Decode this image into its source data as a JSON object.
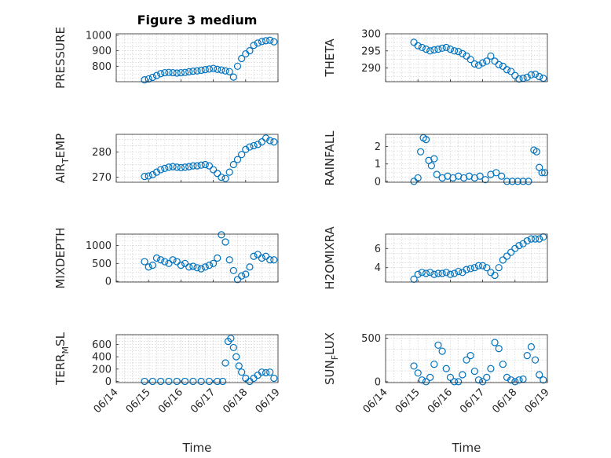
{
  "figure_title": "Figure 3 medium",
  "x_axis_label": "Time",
  "x_tick_labels": [
    "06/14",
    "06/15",
    "06/16",
    "06/17",
    "06/18",
    "06/19"
  ],
  "colors": {
    "marker": "#0072bd",
    "axes": "#262626",
    "grid": "#c8c8c8"
  },
  "chart_data": [
    {
      "type": "scatter",
      "ylabel": "PRESSURE",
      "ylim": [
        700,
        1010
      ],
      "yticks": [
        800,
        900,
        1000
      ],
      "title": "Figure 3 medium",
      "x": [
        "06/14 21:00",
        "06/15 00:00",
        "06/15 03:00",
        "06/15 06:00",
        "06/15 09:00",
        "06/15 12:00",
        "06/15 15:00",
        "06/15 18:00",
        "06/15 21:00",
        "06/16 00:00",
        "06/16 03:00",
        "06/16 06:00",
        "06/16 09:00",
        "06/16 12:00",
        "06/16 15:00",
        "06/16 18:00",
        "06/16 21:00",
        "06/17 00:00",
        "06/17 03:00",
        "06/17 06:00",
        "06/17 09:00",
        "06/17 12:00",
        "06/17 15:00",
        "06/17 18:00",
        "06/17 21:00",
        "06/18 00:00",
        "06/18 03:00",
        "06/18 06:00",
        "06/18 09:00",
        "06/18 12:00",
        "06/18 15:00",
        "06/18 18:00",
        "06/18 21:00"
      ],
      "y": [
        712,
        718,
        728,
        740,
        752,
        758,
        760,
        758,
        756,
        758,
        760,
        764,
        768,
        770,
        774,
        778,
        782,
        786,
        780,
        776,
        770,
        765,
        730,
        800,
        850,
        880,
        900,
        935,
        950,
        960,
        965,
        968,
        958
      ]
    },
    {
      "type": "scatter",
      "ylabel": "THETA",
      "ylim": [
        286,
        300
      ],
      "yticks": [
        290,
        295,
        300
      ],
      "x": [
        "06/14 21:00",
        "06/15 00:00",
        "06/15 03:00",
        "06/15 06:00",
        "06/15 09:00",
        "06/15 12:00",
        "06/15 15:00",
        "06/15 18:00",
        "06/15 21:00",
        "06/16 00:00",
        "06/16 03:00",
        "06/16 06:00",
        "06/16 09:00",
        "06/16 12:00",
        "06/16 15:00",
        "06/16 18:00",
        "06/16 21:00",
        "06/17 00:00",
        "06/17 03:00",
        "06/17 06:00",
        "06/17 09:00",
        "06/17 12:00",
        "06/17 15:00",
        "06/17 18:00",
        "06/17 21:00",
        "06/18 00:00",
        "06/18 03:00",
        "06/18 06:00",
        "06/18 09:00",
        "06/18 12:00",
        "06/18 15:00",
        "06/18 18:00",
        "06/18 21:00"
      ],
      "y": [
        297.5,
        296.5,
        296,
        295.5,
        295,
        295.3,
        295.5,
        295.8,
        296,
        295.5,
        295,
        294.8,
        294.2,
        293.5,
        292.5,
        291.2,
        290.8,
        291.5,
        292,
        293.5,
        292,
        291,
        290.5,
        289.5,
        289,
        287.8,
        286.8,
        287,
        287.3,
        288,
        288.2,
        287.5,
        287
      ]
    },
    {
      "type": "scatter",
      "ylabel": "AIR_TEMP",
      "ylim": [
        268,
        287
      ],
      "yticks": [
        270,
        280
      ],
      "x": [
        "06/14 21:00",
        "06/15 00:00",
        "06/15 03:00",
        "06/15 06:00",
        "06/15 09:00",
        "06/15 12:00",
        "06/15 15:00",
        "06/15 18:00",
        "06/15 21:00",
        "06/16 00:00",
        "06/16 03:00",
        "06/16 06:00",
        "06/16 09:00",
        "06/16 12:00",
        "06/16 15:00",
        "06/16 18:00",
        "06/16 21:00",
        "06/17 00:00",
        "06/17 03:00",
        "06/17 06:00",
        "06/17 09:00",
        "06/17 12:00",
        "06/17 15:00",
        "06/17 18:00",
        "06/17 21:00",
        "06/18 00:00",
        "06/18 03:00",
        "06/18 06:00",
        "06/18 09:00",
        "06/18 12:00",
        "06/18 15:00",
        "06/18 18:00",
        "06/18 21:00"
      ],
      "y": [
        270.3,
        270.5,
        271,
        272,
        273,
        273.5,
        274,
        274.2,
        274,
        273.8,
        274,
        274.2,
        274.5,
        274.5,
        274.8,
        275,
        274.5,
        273,
        271.5,
        270,
        269.5,
        272,
        275,
        277,
        279,
        281,
        282,
        282.5,
        283,
        284,
        285.5,
        284.5,
        284
      ]
    },
    {
      "type": "scatter",
      "ylabel": "RAINFALL",
      "ylim": [
        -0.05,
        2.7
      ],
      "yticks": [
        0,
        1,
        2
      ],
      "x": [
        "06/14 21:00",
        "06/15 00:00",
        "06/15 02:00",
        "06/15 04:00",
        "06/15 06:00",
        "06/15 08:00",
        "06/15 10:00",
        "06/15 12:00",
        "06/15 14:00",
        "06/15 18:00",
        "06/15 22:00",
        "06/16 02:00",
        "06/16 06:00",
        "06/16 10:00",
        "06/16 14:00",
        "06/16 18:00",
        "06/16 22:00",
        "06/17 02:00",
        "06/17 06:00",
        "06/17 10:00",
        "06/17 14:00",
        "06/17 18:00",
        "06/17 22:00",
        "06/18 02:00",
        "06/18 06:00",
        "06/18 10:00",
        "06/18 14:00",
        "06/18 16:00",
        "06/18 18:00",
        "06/18 20:00",
        "06/18 22:00"
      ],
      "y": [
        0,
        0.2,
        1.7,
        2.5,
        2.4,
        1.2,
        0.9,
        1.3,
        0.4,
        0.2,
        0.3,
        0.2,
        0.3,
        0.2,
        0.3,
        0.2,
        0.3,
        0.1,
        0.4,
        0.5,
        0.3,
        0,
        0,
        0,
        0,
        0,
        1.8,
        1.7,
        0.8,
        0.5,
        0.5
      ]
    },
    {
      "type": "scatter",
      "ylabel": "MIXDEPTH",
      "ylim": [
        -20,
        1320
      ],
      "yticks": [
        0,
        500,
        1000
      ],
      "x": [
        "06/14 21:00",
        "06/15 00:00",
        "06/15 03:00",
        "06/15 06:00",
        "06/15 09:00",
        "06/15 12:00",
        "06/15 15:00",
        "06/15 18:00",
        "06/15 21:00",
        "06/16 00:00",
        "06/16 03:00",
        "06/16 06:00",
        "06/16 09:00",
        "06/16 12:00",
        "06/16 15:00",
        "06/16 18:00",
        "06/16 21:00",
        "06/17 00:00",
        "06/17 03:00",
        "06/17 06:00",
        "06/17 09:00",
        "06/17 12:00",
        "06/17 15:00",
        "06/17 18:00",
        "06/17 21:00",
        "06/18 00:00",
        "06/18 03:00",
        "06/18 06:00",
        "06/18 09:00",
        "06/18 12:00",
        "06/18 15:00",
        "06/18 18:00",
        "06/18 21:00"
      ],
      "y": [
        550,
        400,
        450,
        650,
        600,
        550,
        500,
        600,
        550,
        450,
        500,
        400,
        420,
        380,
        350,
        400,
        450,
        500,
        650,
        1300,
        1100,
        600,
        300,
        50,
        150,
        200,
        400,
        700,
        750,
        650,
        700,
        600,
        600
      ]
    },
    {
      "type": "scatter",
      "ylabel": "H2OMIXRA",
      "ylim": [
        2.5,
        7.5
      ],
      "yticks": [
        4,
        6
      ],
      "x": [
        "06/14 21:00",
        "06/15 00:00",
        "06/15 03:00",
        "06/15 06:00",
        "06/15 09:00",
        "06/15 12:00",
        "06/15 15:00",
        "06/15 18:00",
        "06/15 21:00",
        "06/16 00:00",
        "06/16 03:00",
        "06/16 06:00",
        "06/16 09:00",
        "06/16 12:00",
        "06/16 15:00",
        "06/16 18:00",
        "06/16 21:00",
        "06/17 00:00",
        "06/17 03:00",
        "06/17 06:00",
        "06/17 09:00",
        "06/17 12:00",
        "06/17 15:00",
        "06/17 18:00",
        "06/17 21:00",
        "06/18 00:00",
        "06/18 03:00",
        "06/18 06:00",
        "06/18 09:00",
        "06/18 12:00",
        "06/18 15:00",
        "06/18 18:00",
        "06/18 21:00"
      ],
      "y": [
        2.8,
        3.3,
        3.5,
        3.4,
        3.5,
        3.3,
        3.4,
        3.4,
        3.5,
        3.3,
        3.4,
        3.6,
        3.5,
        3.8,
        3.9,
        4.0,
        4.2,
        4.2,
        4.0,
        3.5,
        3.2,
        4.0,
        4.8,
        5.2,
        5.6,
        6.0,
        6.3,
        6.5,
        6.8,
        7.0,
        7.0,
        7.0,
        7.2
      ]
    },
    {
      "type": "scatter",
      "ylabel": "TERR_MSL",
      "ylim": [
        -20,
        760
      ],
      "yticks": [
        0,
        200,
        400,
        600
      ],
      "x": [
        "06/14 21:00",
        "06/15 03:00",
        "06/15 09:00",
        "06/15 15:00",
        "06/15 21:00",
        "06/16 03:00",
        "06/16 09:00",
        "06/16 15:00",
        "06/16 21:00",
        "06/17 03:00",
        "06/17 07:00",
        "06/17 09:00",
        "06/17 11:00",
        "06/17 13:00",
        "06/17 15:00",
        "06/17 17:00",
        "06/17 19:00",
        "06/17 21:00",
        "06/18 00:00",
        "06/18 03:00",
        "06/18 06:00",
        "06/18 09:00",
        "06/18 12:00",
        "06/18 15:00",
        "06/18 18:00",
        "06/18 21:00"
      ],
      "y": [
        0,
        0,
        0,
        0,
        0,
        0,
        0,
        0,
        0,
        0,
        0,
        300,
        650,
        700,
        550,
        400,
        250,
        150,
        50,
        0,
        50,
        100,
        150,
        140,
        150,
        50
      ]
    },
    {
      "type": "scatter",
      "ylabel": "SUN_FLUX",
      "ylim": [
        -10,
        540
      ],
      "yticks": [
        0,
        500
      ],
      "x": [
        "06/14 21:00",
        "06/15 00:00",
        "06/15 03:00",
        "06/15 06:00",
        "06/15 09:00",
        "06/15 12:00",
        "06/15 15:00",
        "06/15 18:00",
        "06/15 21:00",
        "06/16 00:00",
        "06/16 03:00",
        "06/16 06:00",
        "06/16 09:00",
        "06/16 12:00",
        "06/16 15:00",
        "06/16 18:00",
        "06/16 21:00",
        "06/17 00:00",
        "06/17 03:00",
        "06/17 06:00",
        "06/17 09:00",
        "06/17 12:00",
        "06/17 15:00",
        "06/17 18:00",
        "06/17 21:00",
        "06/18 00:00",
        "06/18 03:00",
        "06/18 06:00",
        "06/18 09:00",
        "06/18 12:00",
        "06/18 15:00",
        "06/18 18:00",
        "06/18 21:00"
      ],
      "y": [
        180,
        100,
        20,
        0,
        50,
        200,
        420,
        350,
        150,
        50,
        0,
        0,
        80,
        250,
        300,
        120,
        20,
        0,
        50,
        150,
        450,
        380,
        200,
        50,
        20,
        0,
        20,
        30,
        300,
        400,
        250,
        80,
        20
      ]
    }
  ]
}
